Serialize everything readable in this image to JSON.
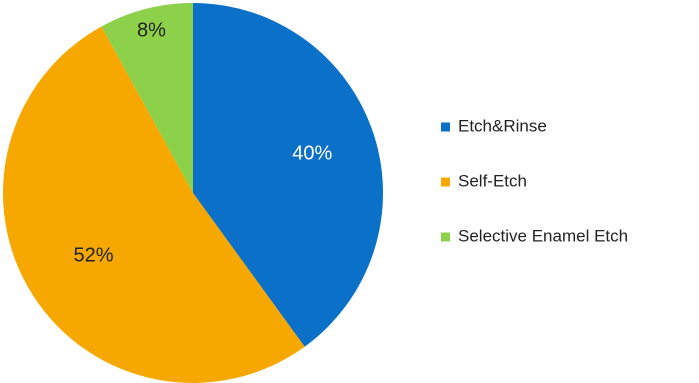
{
  "chart_data": {
    "type": "pie",
    "title": "",
    "legend_position": "right",
    "slices": [
      {
        "name": "Etch&Rinse",
        "value": 40,
        "label": "40%",
        "color": "#0a70c8",
        "label_color": "#ffffff"
      },
      {
        "name": "Self-Etch",
        "value": 52,
        "label": "52%",
        "color": "#f6a800",
        "label_color": "#222222"
      },
      {
        "name": "Selective Enamel Etch",
        "value": 8,
        "label": "8%",
        "color": "#8dd04a",
        "label_color": "#222222"
      }
    ]
  }
}
